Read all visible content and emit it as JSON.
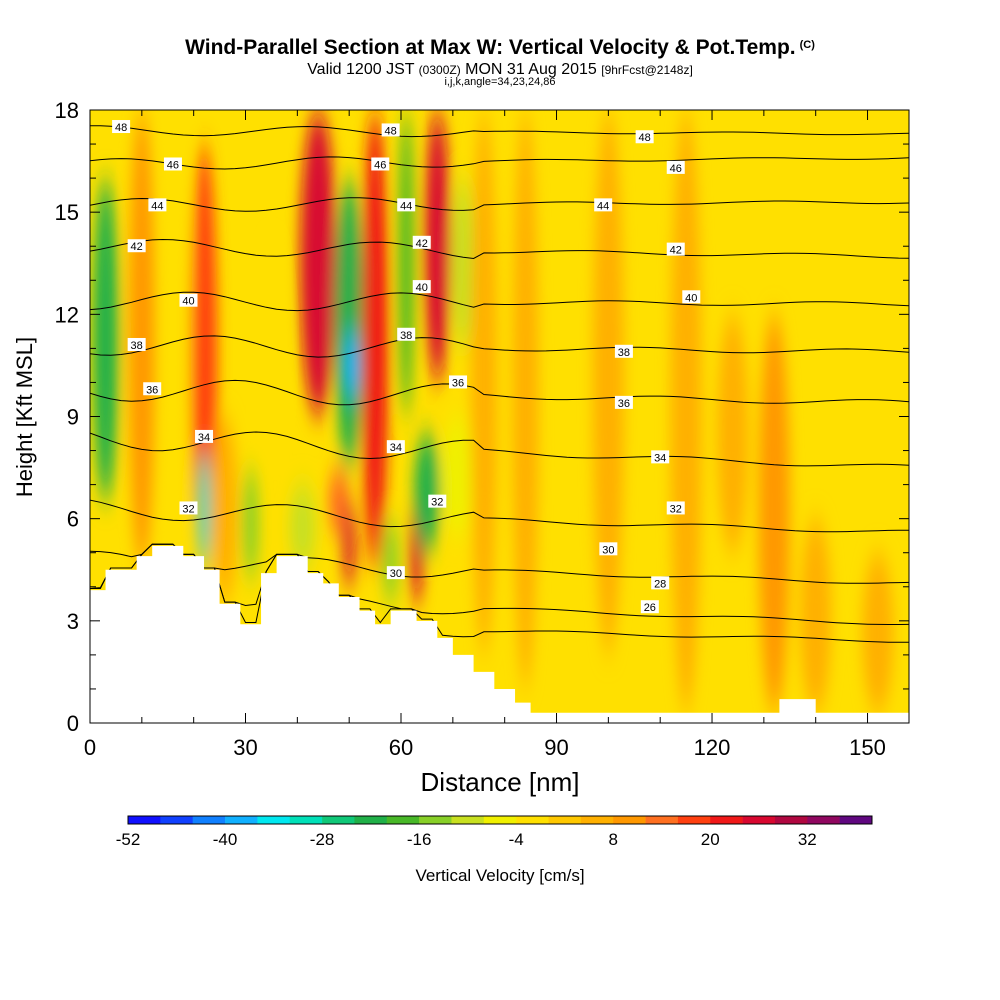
{
  "title": {
    "main": "Wind-Parallel Section at Max W: Vertical Velocity & Pot.Temp.",
    "copyright": "(C)",
    "valid_prefix": "Valid 1200 JST",
    "valid_utc": "(0300Z)",
    "valid_date": "MON 31 Aug 2015",
    "forecast": "[9hrFcst@2148z]",
    "indices": "i,j,k,angle=34,23,24,86"
  },
  "chart_data": {
    "type": "heatmap",
    "xlabel": "Distance [nm]",
    "ylabel": "Height [Kft MSL]",
    "xlim": [
      0,
      158
    ],
    "ylim": [
      0,
      18
    ],
    "x_ticks": [
      "0",
      "30",
      "60",
      "90",
      "120",
      "150"
    ],
    "y_ticks": [
      "0",
      "3",
      "6",
      "9",
      "12",
      "15",
      "18"
    ],
    "grid": false,
    "colorbar": {
      "label": "Vertical Velocity [cm/s]",
      "tick_labels": [
        "-52",
        "-40",
        "-28",
        "-16",
        "-4",
        "8",
        "20",
        "32"
      ],
      "tick_values": [
        -52,
        -40,
        -28,
        -16,
        -4,
        8,
        20,
        32
      ],
      "min": -52,
      "max": 40,
      "colors": [
        "#1010ff",
        "#1040ff",
        "#1080ff",
        "#10b0ff",
        "#00e8f0",
        "#00e0b8",
        "#10c878",
        "#20b048",
        "#48b828",
        "#88d028",
        "#c8e020",
        "#f0f000",
        "#ffe000",
        "#ffc800",
        "#ffb000",
        "#ff9800",
        "#ff7020",
        "#ff4010",
        "#f01818",
        "#d80830",
        "#b00840",
        "#900860",
        "#600880"
      ]
    },
    "background_value_cm_s": 0,
    "terrain_profile_kft": [
      [
        0,
        3.9
      ],
      [
        3,
        4.5
      ],
      [
        9,
        4.9
      ],
      [
        12,
        5.2
      ],
      [
        18,
        4.9
      ],
      [
        22,
        4.5
      ],
      [
        25,
        3.5
      ],
      [
        29,
        2.9
      ],
      [
        33,
        4.4
      ],
      [
        36,
        4.9
      ],
      [
        42,
        4.4
      ],
      [
        45,
        4.1
      ],
      [
        48,
        3.7
      ],
      [
        52,
        3.3
      ],
      [
        55,
        2.9
      ],
      [
        58,
        3.3
      ],
      [
        63,
        3.0
      ],
      [
        67,
        2.5
      ],
      [
        70,
        2.0
      ],
      [
        74,
        1.5
      ],
      [
        78,
        1.0
      ],
      [
        82,
        0.6
      ],
      [
        85,
        0.3
      ],
      [
        90,
        0.3
      ],
      [
        132,
        0.3
      ],
      [
        133,
        0.7
      ],
      [
        139,
        0.7
      ],
      [
        140,
        0.3
      ],
      [
        158,
        0.3
      ]
    ],
    "vertical_velocity_features": [
      {
        "x": 3,
        "z_bottom": 6.5,
        "z_top": 16,
        "width_nm": 2.5,
        "value": -24
      },
      {
        "x": 10,
        "z_bottom": 4.5,
        "z_top": 18,
        "width_nm": 2.5,
        "value": 8
      },
      {
        "x": 17,
        "z_bottom": 6,
        "z_top": 18,
        "width_nm": 2.5,
        "value": -2
      },
      {
        "x": 22,
        "z_bottom": 4.5,
        "z_top": 17,
        "width_nm": 2.5,
        "value": 16
      },
      {
        "x": 22,
        "z_bottom": 4.6,
        "z_top": 8,
        "width_nm": 1.2,
        "value": -32
      },
      {
        "x": 26,
        "z_bottom": 3.5,
        "z_top": 9,
        "width_nm": 2.5,
        "value": 4
      },
      {
        "x": 31,
        "z_bottom": 4.2,
        "z_top": 7.5,
        "width_nm": 1.5,
        "value": -16
      },
      {
        "x": 35,
        "z_bottom": 8,
        "z_top": 14,
        "width_nm": 2,
        "value": -4
      },
      {
        "x": 41,
        "z_bottom": 4.5,
        "z_top": 7,
        "width_nm": 2.5,
        "value": -12
      },
      {
        "x": 44,
        "z_bottom": 9,
        "z_top": 18,
        "width_nm": 3.5,
        "value": 24
      },
      {
        "x": 48,
        "z_bottom": 5.5,
        "z_top": 7.5,
        "width_nm": 2,
        "value": 12
      },
      {
        "x": 50,
        "z_bottom": 7.5,
        "z_top": 16,
        "width_nm": 2.8,
        "value": -24
      },
      {
        "x": 50.5,
        "z_bottom": 9.5,
        "z_top": 11.5,
        "width_nm": 1.3,
        "value": -40
      },
      {
        "x": 50,
        "z_bottom": 4,
        "z_top": 6.5,
        "width_nm": 1.2,
        "value": 24
      },
      {
        "x": 55,
        "z_bottom": 4.5,
        "z_top": 18,
        "width_nm": 2.5,
        "value": 20
      },
      {
        "x": 58,
        "z_bottom": 3.5,
        "z_top": 6,
        "width_nm": 1.5,
        "value": -16
      },
      {
        "x": 61,
        "z_bottom": 9,
        "z_top": 18,
        "width_nm": 1.5,
        "value": -20
      },
      {
        "x": 63,
        "z_bottom": 3.5,
        "z_top": 6.5,
        "width_nm": 1.3,
        "value": 24
      },
      {
        "x": 65,
        "z_bottom": 5,
        "z_top": 8.5,
        "width_nm": 2.5,
        "value": -24
      },
      {
        "x": 67,
        "z_bottom": 10,
        "z_top": 18,
        "width_nm": 2.5,
        "value": 24
      },
      {
        "x": 71,
        "z_bottom": 5.5,
        "z_top": 9,
        "width_nm": 3,
        "value": -8
      },
      {
        "x": 72,
        "z_bottom": 11,
        "z_top": 16,
        "width_nm": 2,
        "value": -12
      },
      {
        "x": 76,
        "z_bottom": 2,
        "z_top": 18,
        "width_nm": 2.5,
        "value": 6
      },
      {
        "x": 84,
        "z_bottom": 1,
        "z_top": 18,
        "width_nm": 2.5,
        "value": 4
      },
      {
        "x": 100,
        "z_bottom": 2,
        "z_top": 18,
        "width_nm": 3,
        "value": 4
      },
      {
        "x": 115,
        "z_bottom": 0.3,
        "z_top": 18,
        "width_nm": 3,
        "value": 6
      },
      {
        "x": 124,
        "z_bottom": 5,
        "z_top": 12,
        "width_nm": 3,
        "value": 4
      },
      {
        "x": 132,
        "z_bottom": 0.3,
        "z_top": 12,
        "width_nm": 3,
        "value": 8
      },
      {
        "x": 140,
        "z_bottom": 0.3,
        "z_top": 6,
        "width_nm": 3,
        "value": 6
      },
      {
        "x": 152,
        "z_bottom": 0.3,
        "z_top": 5,
        "width_nm": 3,
        "value": 5
      }
    ],
    "theta_contours": [
      {
        "label": "26",
        "level_west_kft": 3.0,
        "level_east_kft": 2.4
      },
      {
        "label": "28",
        "level_west_kft": 3.8,
        "level_east_kft": 2.9
      },
      {
        "label": "30",
        "level_west_kft": 4.8,
        "level_east_kft": 4.1
      },
      {
        "label": "32",
        "level_west_kft": 6.3,
        "level_east_kft": 5.6
      },
      {
        "label": "34",
        "level_west_kft": 8.4,
        "level_east_kft": 7.5
      },
      {
        "label": "36",
        "level_west_kft": 9.8,
        "level_east_kft": 9.4
      },
      {
        "label": "38",
        "level_west_kft": 11.1,
        "level_east_kft": 10.9
      },
      {
        "label": "40",
        "level_west_kft": 12.4,
        "level_east_kft": 12.3
      },
      {
        "label": "42",
        "level_west_kft": 14.0,
        "level_east_kft": 13.7
      },
      {
        "label": "44",
        "level_west_kft": 15.2,
        "level_east_kft": 15.3
      },
      {
        "label": "46",
        "level_west_kft": 16.4,
        "level_east_kft": 16.6
      },
      {
        "label": "48",
        "level_west_kft": 17.4,
        "level_east_kft": 17.3
      }
    ],
    "theta_labels": [
      {
        "text": "48",
        "x": 6,
        "z": 17.5
      },
      {
        "text": "48",
        "x": 58,
        "z": 17.4
      },
      {
        "text": "48",
        "x": 107,
        "z": 17.2
      },
      {
        "text": "46",
        "x": 16,
        "z": 16.4
      },
      {
        "text": "46",
        "x": 56,
        "z": 16.4
      },
      {
        "text": "46",
        "x": 113,
        "z": 16.3
      },
      {
        "text": "44",
        "x": 13,
        "z": 15.2
      },
      {
        "text": "44",
        "x": 61,
        "z": 15.2
      },
      {
        "text": "44",
        "x": 99,
        "z": 15.2
      },
      {
        "text": "42",
        "x": 9,
        "z": 14.0
      },
      {
        "text": "42",
        "x": 64,
        "z": 14.1
      },
      {
        "text": "42",
        "x": 113,
        "z": 13.9
      },
      {
        "text": "40",
        "x": 19,
        "z": 12.4
      },
      {
        "text": "40",
        "x": 64,
        "z": 12.8
      },
      {
        "text": "40",
        "x": 116,
        "z": 12.5
      },
      {
        "text": "38",
        "x": 9,
        "z": 11.1
      },
      {
        "text": "38",
        "x": 61,
        "z": 11.4
      },
      {
        "text": "38",
        "x": 103,
        "z": 10.9
      },
      {
        "text": "36",
        "x": 12,
        "z": 9.8
      },
      {
        "text": "36",
        "x": 71,
        "z": 10.0
      },
      {
        "text": "36",
        "x": 103,
        "z": 9.4
      },
      {
        "text": "34",
        "x": 22,
        "z": 8.4
      },
      {
        "text": "34",
        "x": 59,
        "z": 8.1
      },
      {
        "text": "34",
        "x": 110,
        "z": 7.8
      },
      {
        "text": "32",
        "x": 19,
        "z": 6.3
      },
      {
        "text": "32",
        "x": 67,
        "z": 6.5
      },
      {
        "text": "32",
        "x": 113,
        "z": 6.3
      },
      {
        "text": "30",
        "x": 59,
        "z": 4.4
      },
      {
        "text": "30",
        "x": 100,
        "z": 5.1
      },
      {
        "text": "28",
        "x": 110,
        "z": 4.1
      },
      {
        "text": "26",
        "x": 108,
        "z": 3.4
      }
    ]
  }
}
